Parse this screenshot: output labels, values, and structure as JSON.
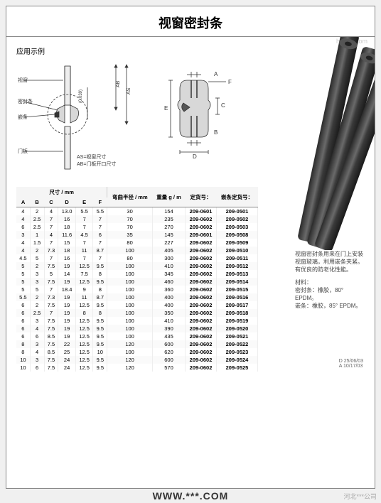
{
  "title": "视窗密封条",
  "example_label": "应用示例",
  "diagram_app": {
    "labels": {
      "window": "视窗",
      "sealing_strip": "密封条",
      "locking_strip": "嵌条",
      "door_panel": "门板",
      "as_note": "AS=视窗尺寸",
      "ab_note": "AB=门板开口尺寸",
      "as": "AS",
      "ab": "AB",
      "tol": "(0.039)"
    },
    "colors": {
      "line": "#333333",
      "fill": "#e0e0e0",
      "hatch": "#bbbbbb"
    }
  },
  "diagram_profile": {
    "labels": {
      "a": "A",
      "b": "B",
      "c": "C",
      "d": "D",
      "e": "E",
      "f": "F"
    },
    "colors": {
      "line": "#333333",
      "fill": "#d8d8d8"
    }
  },
  "product_photo": {
    "strip_color": "#4a4a4a",
    "bg": "#ffffff"
  },
  "side_description": {
    "p1": "视窗密封条用来在门上安装视窗玻璃，利用嵌条夹紧。",
    "p2": "有优良的防老化性能。",
    "material_label": "材料：",
    "seal": "密封条：橡胶，80° EPDM。",
    "lock": "嵌条：橡胶，85° EPDM。"
  },
  "table": {
    "header_group_dim": "尺寸 / mm",
    "header_bend": "弯曲半径 / mm",
    "header_weight": "重量 g / m",
    "header_ref": "定货号：",
    "header_lock_ref": "嵌条定货号：",
    "cols": [
      "A",
      "B",
      "C",
      "D",
      "E",
      "F"
    ],
    "rows": [
      {
        "d": [
          "4",
          "2",
          "4",
          "13.0",
          "5.5",
          "5.5"
        ],
        "r": "30",
        "w": "154",
        "ref": "209-0601",
        "lock": "209-0501"
      },
      {
        "d": [
          "4",
          "2.5",
          "7",
          "16",
          "7",
          "7"
        ],
        "r": "70",
        "w": "235",
        "ref": "209-0602",
        "lock": "209-0502"
      },
      {
        "d": [
          "6",
          "2.5",
          "7",
          "18",
          "7",
          "7"
        ],
        "r": "70",
        "w": "270",
        "ref": "209-0602",
        "lock": "209-0503"
      },
      {
        "d": [
          "3",
          "1",
          "4",
          "11.6",
          "4.5",
          "6"
        ],
        "r": "35",
        "w": "145",
        "ref": "209-0601",
        "lock": "209-0508"
      },
      {
        "d": [
          "4",
          "1.5",
          "7",
          "15",
          "7",
          "7"
        ],
        "r": "80",
        "w": "227",
        "ref": "209-0602",
        "lock": "209-0509"
      },
      {
        "d": [
          "4",
          "2",
          "7.3",
          "18",
          "11",
          "8.7"
        ],
        "r": "100",
        "w": "405",
        "ref": "209-0602",
        "lock": "209-0510"
      },
      {
        "d": [
          "4.5",
          "5",
          "7",
          "16",
          "7",
          "7"
        ],
        "r": "80",
        "w": "300",
        "ref": "209-0602",
        "lock": "209-0511"
      },
      {
        "d": [
          "5",
          "2",
          "7.5",
          "19",
          "12.5",
          "9.5"
        ],
        "r": "100",
        "w": "410",
        "ref": "209-0602",
        "lock": "209-0512"
      },
      {
        "d": [
          "5",
          "3",
          "5",
          "14",
          "7.5",
          "8"
        ],
        "r": "100",
        "w": "345",
        "ref": "209-0602",
        "lock": "209-0513"
      },
      {
        "d": [
          "5",
          "3",
          "7.5",
          "19",
          "12.5",
          "9.5"
        ],
        "r": "100",
        "w": "460",
        "ref": "209-0602",
        "lock": "209-0514"
      },
      {
        "d": [
          "5",
          "5",
          "7",
          "18.4",
          "9",
          "8"
        ],
        "r": "100",
        "w": "360",
        "ref": "209-0602",
        "lock": "209-0515"
      },
      {
        "d": [
          "5.5",
          "2",
          "7.3",
          "19",
          "11",
          "8.7"
        ],
        "r": "100",
        "w": "400",
        "ref": "209-0602",
        "lock": "209-0516"
      },
      {
        "d": [
          "6",
          "2",
          "7.5",
          "19",
          "12.5",
          "9.5"
        ],
        "r": "100",
        "w": "400",
        "ref": "209-0602",
        "lock": "209-0517"
      },
      {
        "d": [
          "6",
          "2.5",
          "7",
          "19",
          "8",
          "8"
        ],
        "r": "100",
        "w": "350",
        "ref": "209-0602",
        "lock": "209-0518"
      },
      {
        "d": [
          "6",
          "3",
          "7.5",
          "19",
          "12.5",
          "9.5"
        ],
        "r": "100",
        "w": "410",
        "ref": "209-0602",
        "lock": "209-0519"
      },
      {
        "d": [
          "6",
          "4",
          "7.5",
          "19",
          "12.5",
          "9.5"
        ],
        "r": "100",
        "w": "390",
        "ref": "209-0602",
        "lock": "209-0520"
      },
      {
        "d": [
          "6",
          "6",
          "8.5",
          "19",
          "12.5",
          "9.5"
        ],
        "r": "100",
        "w": "435",
        "ref": "209-0602",
        "lock": "209-0521"
      },
      {
        "d": [
          "8",
          "3",
          "7.5",
          "22",
          "12.5",
          "9.5"
        ],
        "r": "120",
        "w": "600",
        "ref": "209-0602",
        "lock": "209-0522"
      },
      {
        "d": [
          "8",
          "4",
          "8.5",
          "25",
          "12.5",
          "10"
        ],
        "r": "100",
        "w": "620",
        "ref": "209-0602",
        "lock": "209-0523"
      },
      {
        "d": [
          "10",
          "3",
          "7.5",
          "24",
          "12.5",
          "9.5"
        ],
        "r": "120",
        "w": "600",
        "ref": "209-0602",
        "lock": "209-0524"
      },
      {
        "d": [
          "10",
          "6",
          "7.5",
          "24",
          "12.5",
          "9.5"
        ],
        "r": "120",
        "w": "570",
        "ref": "209-0602",
        "lock": "209-0525"
      }
    ]
  },
  "doc_meta": {
    "line1": "D 25/06/03",
    "line2": "A 10/17/03"
  },
  "watermark": "WWW.***.COM",
  "footer": "河北***公司",
  "hc_logo": "hc360.com"
}
